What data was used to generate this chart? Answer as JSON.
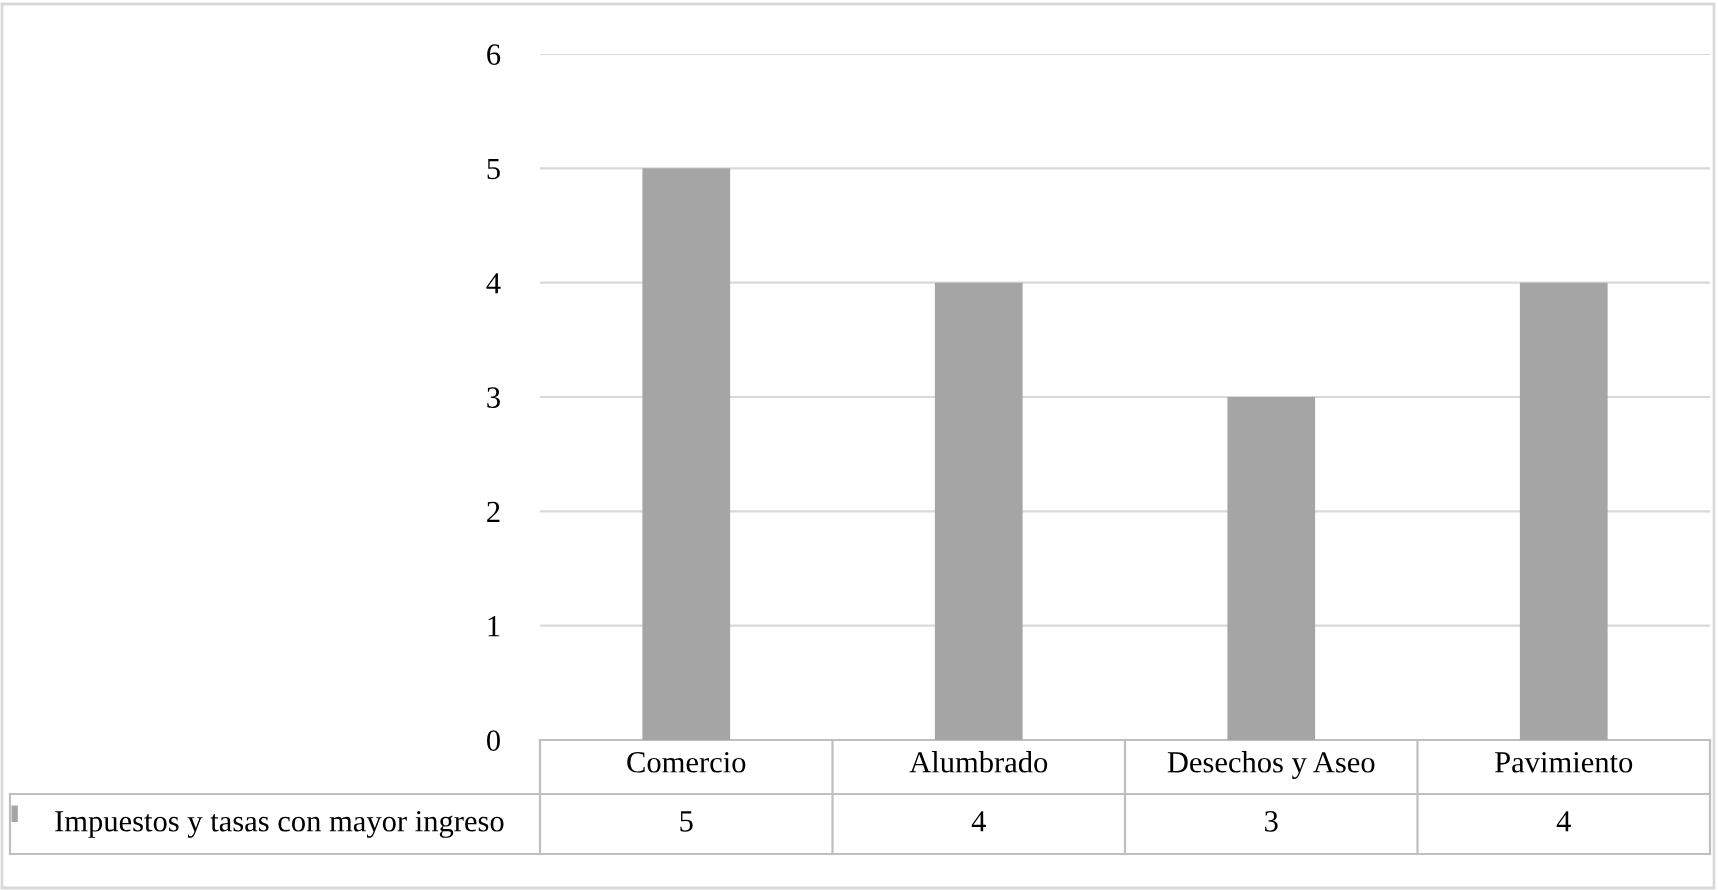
{
  "chart_data": {
    "type": "bar",
    "categories": [
      "Comercio",
      "Alumbrado",
      "Desechos y Aseo",
      "Pavimiento"
    ],
    "series": [
      {
        "name": "Impuestos y tasas con mayor ingreso",
        "color": "#a5a5a5",
        "values": [
          5,
          4,
          3,
          4
        ]
      }
    ],
    "ylim": [
      0,
      6
    ],
    "yticks": [
      0,
      1,
      2,
      3,
      4,
      5,
      6
    ],
    "grid": "y",
    "legend": "bottom",
    "data_labels": true
  }
}
